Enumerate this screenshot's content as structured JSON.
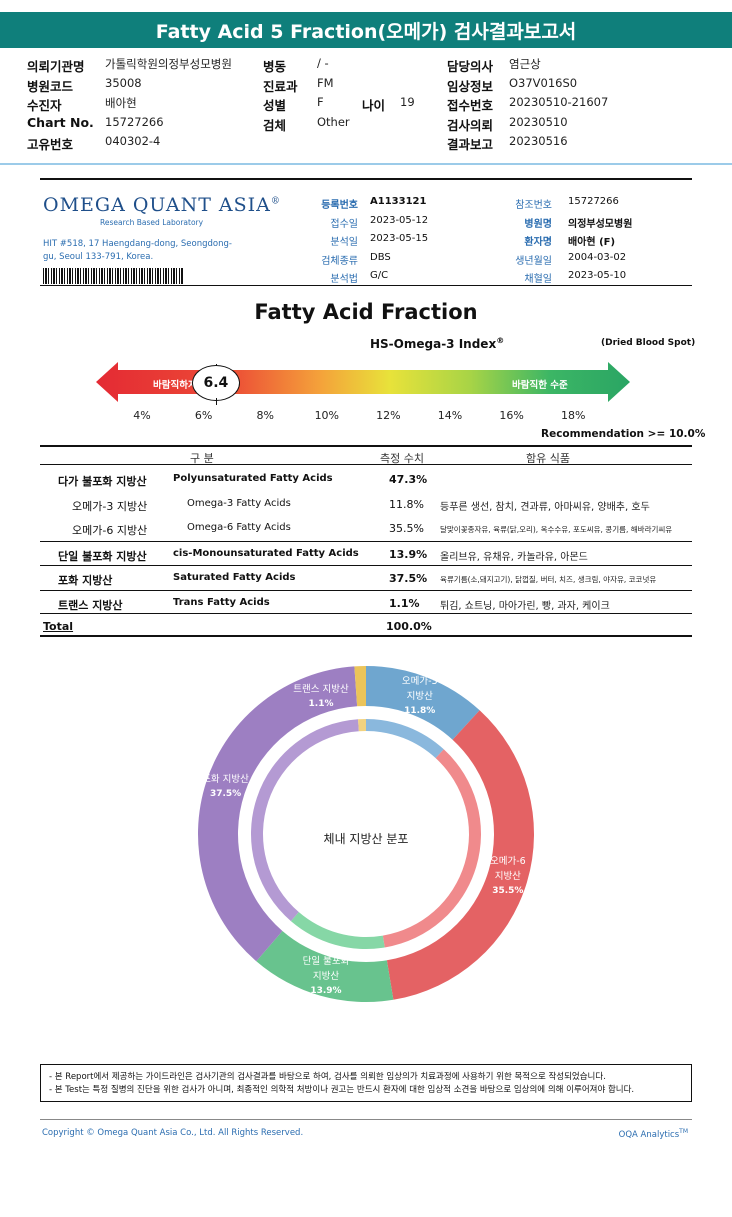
{
  "report": {
    "title": "Fatty Acid 5 Fraction(오메가) 검사결과보고서"
  },
  "patient_info": {
    "rows": [
      [
        {
          "label": "의뢰기관명",
          "value": "가톨릭학원의정부성모병원"
        },
        {
          "label": "병동",
          "value": "/ -"
        },
        {
          "label": "",
          "value": ""
        },
        {
          "label": "담당의사",
          "value": "염근상"
        }
      ],
      [
        {
          "label": "병원코드",
          "value": "35008"
        },
        {
          "label": "진료과",
          "value": "FM"
        },
        {
          "label": "",
          "value": ""
        },
        {
          "label": "임상정보",
          "value": "O37V016S0"
        }
      ],
      [
        {
          "label": "수진자",
          "value": "배아현"
        },
        {
          "label": "성별",
          "value": "F"
        },
        {
          "label": "나이",
          "value": "19"
        },
        {
          "label": "접수번호",
          "value": "20230510-21607"
        }
      ],
      [
        {
          "label": "Chart No.",
          "value": "15727266"
        },
        {
          "label": "검체",
          "value": "Other"
        },
        {
          "label": "",
          "value": ""
        },
        {
          "label": "검사의뢰",
          "value": "20230510"
        }
      ],
      [
        {
          "label": "고유번호",
          "value": "040302-4"
        },
        {
          "label": "",
          "value": ""
        },
        {
          "label": "",
          "value": ""
        },
        {
          "label": "결과보고",
          "value": "20230516"
        }
      ]
    ]
  },
  "lab": {
    "logo": "OMEGA QUANT ASIA",
    "logo_reg": "®",
    "subtitle": "Research Based Laboratory",
    "address": "HIT #518, 17 Haengdang-dong, Seongdong-gu, Seoul 133-791, Korea.",
    "fields_left": [
      {
        "label": "등록번호",
        "value": "A1133121",
        "bold": true
      },
      {
        "label": "접수일",
        "value": "2023-05-12",
        "bold": false
      },
      {
        "label": "분석일",
        "value": "2023-05-15",
        "bold": false
      },
      {
        "label": "검체종류",
        "value": "DBS",
        "bold": false
      },
      {
        "label": "분석법",
        "value": "G/C",
        "bold": false
      }
    ],
    "fields_right": [
      {
        "label": "참조번호",
        "value": "15727266",
        "bold": false
      },
      {
        "label": "병원명",
        "value": "의정부성모병원",
        "bold": true
      },
      {
        "label": "환자명",
        "value": "배아현 (F)",
        "bold": true
      },
      {
        "label": "생년월일",
        "value": "2004-03-02",
        "bold": false
      },
      {
        "label": "채혈일",
        "value": "2023-05-10",
        "bold": false
      }
    ]
  },
  "index": {
    "section_title": "Fatty Acid Fraction",
    "title": "HS-Omega-3 Index",
    "title_reg": "®",
    "sample_type": "(Dried Blood Spot)",
    "left_zone_label": "바람직하지 않은 수준",
    "right_zone_label": "바람직한 수준",
    "value": 6.4,
    "value_label": "6.4",
    "scale_min": 3,
    "scale_max": 19,
    "ticks": [
      "4%",
      "6%",
      "8%",
      "10%",
      "12%",
      "14%",
      "16%",
      "18%"
    ],
    "tick_values": [
      4,
      6,
      8,
      10,
      12,
      14,
      16,
      18
    ],
    "recommendation": "Recommendation  >= 10.0%"
  },
  "fa_table": {
    "headers": {
      "category": "구 분",
      "value": "측정 수치",
      "foods": "함유 식품"
    },
    "rows": [
      {
        "kor": "다가 불포화 지방산",
        "eng": "Polyunsaturated Fatty Acids",
        "value": "47.3%",
        "foods": "",
        "major": true,
        "indent": false
      },
      {
        "kor": "오메가-3 지방산",
        "eng": "Omega-3 Fatty Acids",
        "value": "11.8%",
        "foods": "등푸른 생선, 참치, 견과류, 아마씨유, 양배추, 호두",
        "major": false,
        "indent": true
      },
      {
        "kor": "오메가-6 지방산",
        "eng": "Omega-6 Fatty Acids",
        "value": "35.5%",
        "foods": "달맞이꽃종자유, 육류(닭,오리), 옥수수유, 포도씨유, 콩기름, 해바라기씨유",
        "major": false,
        "indent": true
      },
      {
        "kor": "단일 불포화 지방산",
        "eng": "cis-Monounsaturated Fatty Acids",
        "value": "13.9%",
        "foods": "올리브유, 유채유, 카놀라유, 아몬드",
        "major": true,
        "indent": false
      },
      {
        "kor": "포화 지방산",
        "eng": "Saturated Fatty Acids",
        "value": "37.5%",
        "foods": "육류기름(소,돼지고기), 닭껍질, 버터, 치즈, 생크림, 야자유, 코코넛유",
        "major": true,
        "indent": false
      },
      {
        "kor": "트랜스 지방산",
        "eng": "Trans Fatty Acids",
        "value": "1.1%",
        "foods": "튀김, 쇼트닝, 마아가린, 빵, 과자, 케이크",
        "major": true,
        "indent": false
      }
    ],
    "total_label": "Total",
    "total_value": "100.0%"
  },
  "chart_data": {
    "type": "pie",
    "title": "체내 지방산 분포",
    "outer_ring": [
      {
        "name": "오메가-3 지방산",
        "value": 11.8,
        "label": "11.8%",
        "color": "#6fa6cf"
      },
      {
        "name": "오메가-6 지방산",
        "value": 35.5,
        "label": "35.5%",
        "color": "#e46264"
      },
      {
        "name": "단일 불포화 지방산",
        "value": 13.9,
        "label": "13.9%",
        "color": "#68c38e"
      },
      {
        "name": "포화 지방산",
        "value": 37.5,
        "label": "37.5%",
        "color": "#9d7fc2"
      },
      {
        "name": "트랜스 지방산",
        "value": 1.1,
        "label": "1.1%",
        "color": "#ebc45a"
      }
    ],
    "inner_ring_colors": [
      "#8ab8dd",
      "#f08a8c",
      "#86d7a6",
      "#b49ad3",
      "#f1d27f"
    ],
    "labels": [
      {
        "line1": "오메가-3",
        "line2": "지방산",
        "pct": "11.8%"
      },
      {
        "line1": "오메가-6",
        "line2": "지방산",
        "pct": "35.5%"
      },
      {
        "line1": "단일 불포화",
        "line2": "지방산",
        "pct": "13.9%"
      },
      {
        "line1": "포화 지방산",
        "line2": "",
        "pct": "37.5%"
      },
      {
        "line1": "트랜스 지방산",
        "line2": "",
        "pct": "1.1%"
      }
    ]
  },
  "notice": {
    "line1": "- 본 Report에서 제공하는 가이드라인은 검사기관의 검사결과를 바탕으로 하여, 검사를 의뢰한 임상의가 치료과정에 사용하기 위한 목적으로 작성되었습니다.",
    "line2": "- 본 Test는 특정 질병의 진단을 위한 검사가 아니며, 최종적인 의학적 처방이나 권고는 반드시 환자에 대한 임상적 소견을 바탕으로 임상의에 의해 이루어져야 합니다."
  },
  "footer": {
    "copyright": "Copyright © Omega Quant Asia Co., Ltd.  All Rights Reserved.",
    "brand": "OQA Analytics",
    "brand_tm": "TM"
  }
}
